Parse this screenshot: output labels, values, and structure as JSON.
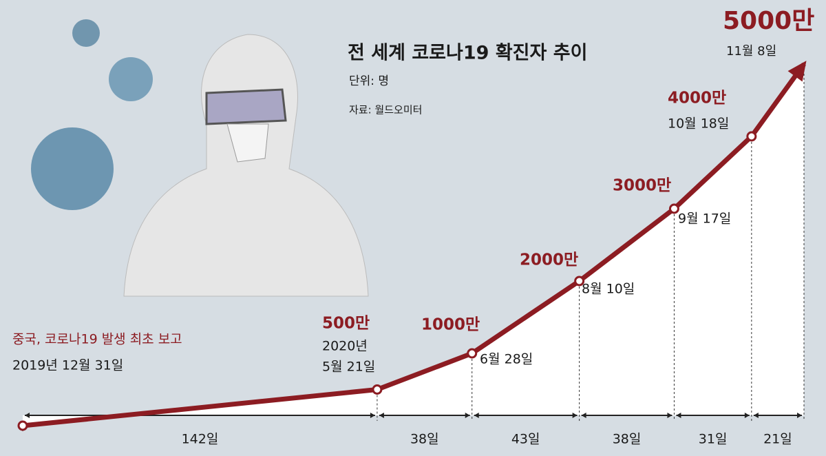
{
  "chart_data": {
    "type": "line",
    "title": "전 세계 코로나19 확진자 추이",
    "subtitle": "단위: 명",
    "source": "자료: 월드오미터",
    "annotation": "중국, 코로나19 발생 최초 보고",
    "year_annotation": "2020년",
    "categories": [
      "2019년 12월 31일",
      "5월 21일",
      "6월 28일",
      "8월 10일",
      "9월 17일",
      "10월 18일",
      "11월 8일"
    ],
    "values": [
      0,
      5000000,
      10000000,
      20000000,
      30000000,
      40000000,
      50000000
    ],
    "value_labels": [
      null,
      "500만",
      "1000만",
      "2000만",
      "3000만",
      "4000만",
      "5000만"
    ],
    "intervals": [
      {
        "value": 142,
        "label": "142일"
      },
      {
        "value": 38,
        "label": "38일"
      },
      {
        "value": 43,
        "label": "43일"
      },
      {
        "value": 38,
        "label": "38일"
      },
      {
        "value": 31,
        "label": "31일"
      },
      {
        "value": 21,
        "label": "21일"
      }
    ],
    "ylim": [
      0,
      50000000
    ],
    "color": "#8c1c22"
  }
}
